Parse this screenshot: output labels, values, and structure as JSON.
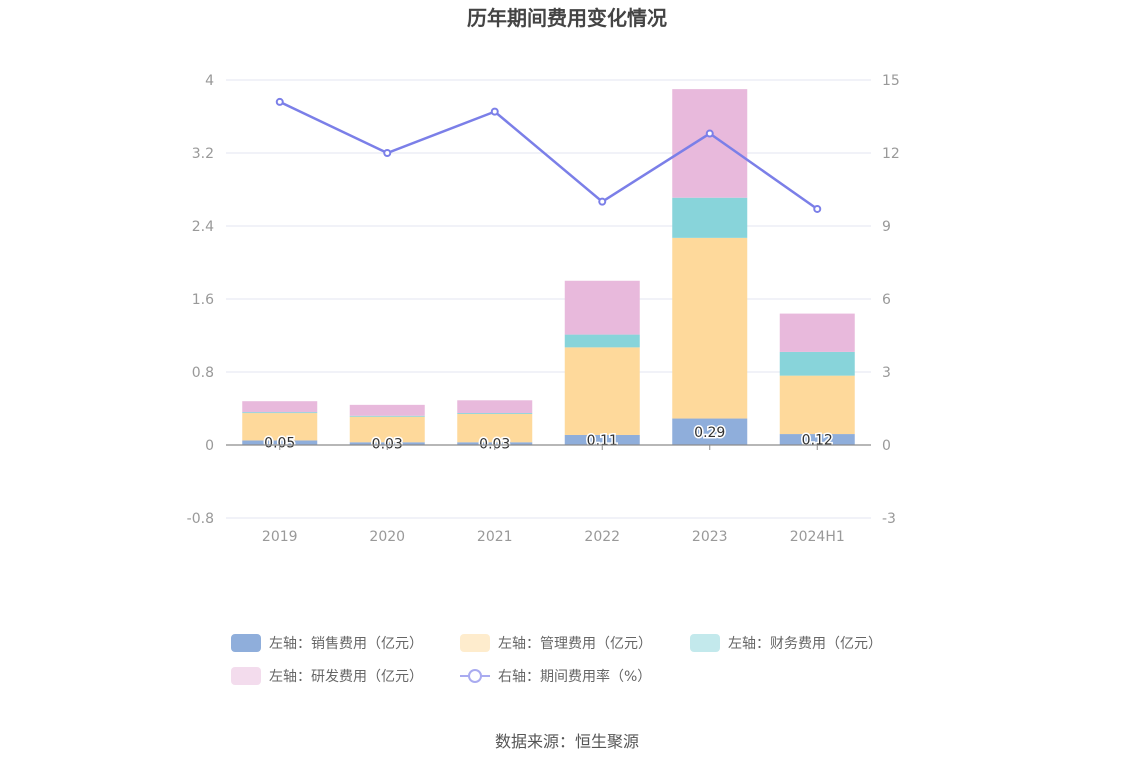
{
  "chart_data": {
    "type": "bar",
    "title": "历年期间费用变化情况",
    "categories": [
      "2019",
      "2020",
      "2021",
      "2022",
      "2023",
      "2024H1"
    ],
    "series": [
      {
        "name": "左轴：销售费用（亿元）",
        "axis": "left",
        "kind": "bar",
        "color": "#8faedb",
        "values": [
          0.05,
          0.03,
          0.03,
          0.11,
          0.29,
          0.12
        ],
        "labels": [
          "0.05",
          "0.03",
          "0.03",
          "0.11",
          "0.29",
          "0.12"
        ]
      },
      {
        "name": "左轴：管理费用（亿元）",
        "axis": "left",
        "kind": "bar",
        "color": "#fed99b",
        "values": [
          0.3,
          0.28,
          0.31,
          0.96,
          1.98,
          0.64
        ]
      },
      {
        "name": "左轴：财务费用（亿元）",
        "axis": "left",
        "kind": "bar",
        "color": "#88d4da",
        "values": [
          0.01,
          0.01,
          0.01,
          0.14,
          0.44,
          0.26
        ]
      },
      {
        "name": "左轴：研发费用（亿元）",
        "axis": "left",
        "kind": "bar",
        "color": "#e8b9dc",
        "values": [
          0.12,
          0.12,
          0.14,
          0.59,
          1.19,
          0.42
        ]
      },
      {
        "name": "右轴：期间费用率（%）",
        "axis": "right",
        "kind": "line",
        "color": "#7b7fe8",
        "values": [
          14.1,
          12.0,
          13.7,
          10.0,
          12.8,
          9.7
        ]
      }
    ],
    "y_left": {
      "min": -0.8,
      "max": 4,
      "ticks": [
        "-0.8",
        "0",
        "0.8",
        "1.6",
        "2.4",
        "3.2",
        "4"
      ]
    },
    "y_right": {
      "min": -3,
      "max": 15,
      "ticks": [
        "-3",
        "0",
        "3",
        "6",
        "9",
        "12",
        "15"
      ]
    },
    "legend_position": "bottom",
    "grid": true,
    "source": "数据来源：恒生聚源"
  }
}
